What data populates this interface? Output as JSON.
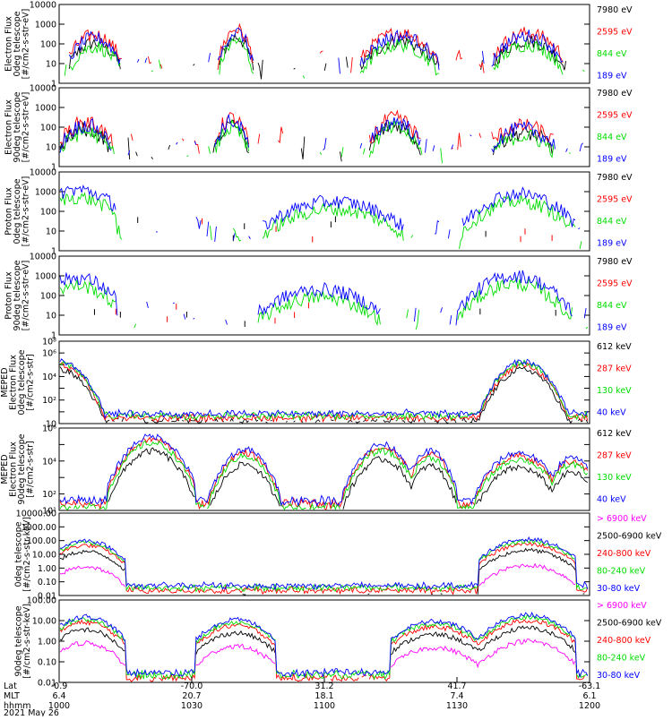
{
  "chart_data": {
    "type": "line",
    "panels": [
      {
        "id": "p1",
        "ylabel": [
          "Electron Flux",
          "0deg telescope",
          "[#/cm2-s-str-eV]"
        ],
        "yscale": "log",
        "ylim": [
          1,
          10000
        ],
        "yticks": [
          "1",
          "10",
          "100",
          "1000",
          "10000"
        ],
        "series": [
          {
            "name": "7980 eV",
            "color": "#000000"
          },
          {
            "name": "2595 eV",
            "color": "#ff0000"
          },
          {
            "name": "844 eV",
            "color": "#00dd00"
          },
          {
            "name": "189 eV",
            "color": "#0000ff"
          }
        ]
      },
      {
        "id": "p2",
        "ylabel": [
          "Electron Flux",
          "90deg telescope",
          "[#/cm2-s-str-eV]"
        ],
        "yscale": "log",
        "ylim": [
          1,
          10000
        ],
        "yticks": [
          "1",
          "10",
          "100",
          "1000",
          "10000"
        ],
        "series": [
          {
            "name": "7980 eV",
            "color": "#000000"
          },
          {
            "name": "2595 eV",
            "color": "#ff0000"
          },
          {
            "name": "844 eV",
            "color": "#00dd00"
          },
          {
            "name": "189 eV",
            "color": "#0000ff"
          }
        ]
      },
      {
        "id": "p3",
        "ylabel": [
          "Proton Flux",
          "0deg telescope",
          "[#/cm2-s-str-eV]"
        ],
        "yscale": "log",
        "ylim": [
          1,
          10000
        ],
        "yticks": [
          "1",
          "10",
          "100",
          "1000",
          "10000"
        ],
        "series": [
          {
            "name": "7980 eV",
            "color": "#000000"
          },
          {
            "name": "2595 eV",
            "color": "#ff0000"
          },
          {
            "name": "844 eV",
            "color": "#00dd00"
          },
          {
            "name": "189 eV",
            "color": "#0000ff"
          }
        ]
      },
      {
        "id": "p4",
        "ylabel": [
          "Proton Flux",
          "90deg telescope",
          "[#/cm2-s-str-eV]"
        ],
        "yscale": "log",
        "ylim": [
          1,
          10000
        ],
        "yticks": [
          "1",
          "10",
          "100",
          "1000",
          "10000"
        ],
        "series": [
          {
            "name": "7980 eV",
            "color": "#000000"
          },
          {
            "name": "2595 eV",
            "color": "#ff0000"
          },
          {
            "name": "844 eV",
            "color": "#00dd00"
          },
          {
            "name": "189 eV",
            "color": "#0000ff"
          }
        ]
      },
      {
        "id": "p5",
        "ylabel": [
          "MEPED",
          "Electron Flux",
          "0deg telescope",
          "[#/cm2-s-str]"
        ],
        "yscale": "log",
        "ylim": [
          10,
          100000000
        ],
        "yticks": [
          "10^1",
          "10^2",
          "10^3",
          "10^4",
          "10^5",
          "10^6",
          "10^7",
          "10^8"
        ],
        "ytick_labels": [
          "10",
          "",
          "10²",
          "",
          "10⁴",
          "",
          "10⁶",
          "10⁸"
        ],
        "series": [
          {
            "name": "612 keV",
            "color": "#000000"
          },
          {
            "name": "287 keV",
            "color": "#ff0000"
          },
          {
            "name": "130 keV",
            "color": "#00dd00"
          },
          {
            "name": "40 keV",
            "color": "#0000ff"
          }
        ]
      },
      {
        "id": "p6",
        "ylabel": [
          "MEPED",
          "Electron Flux",
          "90deg telescope",
          "[#/cm2-s-str]"
        ],
        "yscale": "log",
        "ylim": [
          10,
          1000000
        ],
        "yticks": [
          "10^1",
          "10^2",
          "10^3",
          "10^4",
          "10^5",
          "10^6"
        ],
        "ytick_labels": [
          "10¹",
          "10²",
          "",
          "10⁴",
          "",
          "10⁶"
        ],
        "series": [
          {
            "name": "612 keV",
            "color": "#000000"
          },
          {
            "name": "287 keV",
            "color": "#ff0000"
          },
          {
            "name": "130 keV",
            "color": "#00dd00"
          },
          {
            "name": "40 keV",
            "color": "#0000ff"
          }
        ]
      },
      {
        "id": "p7",
        "ylabel": [
          "0deg telescope",
          "[#/cm2-s-str-keV]"
        ],
        "yscale": "log",
        "ylim": [
          0.01,
          10000
        ],
        "yticks": [
          "0.01",
          "0.10",
          "1.00",
          "10.00",
          "100.00",
          "1000.00",
          "10000.00"
        ],
        "series": [
          {
            "name": "> 6900 keV",
            "color": "#ff00ff"
          },
          {
            "name": "2500-6900 keV",
            "color": "#000000"
          },
          {
            "name": "240-800 keV",
            "color": "#ff0000"
          },
          {
            "name": "80-240 keV",
            "color": "#00dd00"
          },
          {
            "name": "30-80 keV",
            "color": "#0000ff"
          }
        ]
      },
      {
        "id": "p8",
        "ylabel": [
          "90deg telescope",
          "[#/cm2-s-str-keV]"
        ],
        "yscale": "log",
        "ylim": [
          0.01,
          1000
        ],
        "yticks": [
          "0.01",
          "0.10",
          "1.00",
          "10.00",
          "100.00"
        ],
        "series": [
          {
            "name": "> 6900 keV",
            "color": "#ff00ff"
          },
          {
            "name": "2500-6900 keV",
            "color": "#000000"
          },
          {
            "name": "240-800 keV",
            "color": "#ff0000"
          },
          {
            "name": "80-240 keV",
            "color": "#00dd00"
          },
          {
            "name": "30-80 keV",
            "color": "#0000ff"
          }
        ]
      }
    ],
    "x_axis": {
      "row_labels": [
        "Lat",
        "MLT",
        "hhmm"
      ],
      "ticks": [
        {
          "lat": "-0.9",
          "mlt": "6.4",
          "hhmm": "1000"
        },
        {
          "lat": "-70.0",
          "mlt": "20.7",
          "hhmm": "1030"
        },
        {
          "lat": "31.2",
          "mlt": "18.1",
          "hhmm": "1100"
        },
        {
          "lat": "41.7",
          "mlt": "7.4",
          "hhmm": "1130"
        },
        {
          "lat": "-63.1",
          "mlt": "6.1",
          "hhmm": "1200"
        }
      ],
      "date": "2021 May 26",
      "range_minutes": [
        0,
        120
      ]
    },
    "grid": false,
    "legend_placement": "right"
  }
}
